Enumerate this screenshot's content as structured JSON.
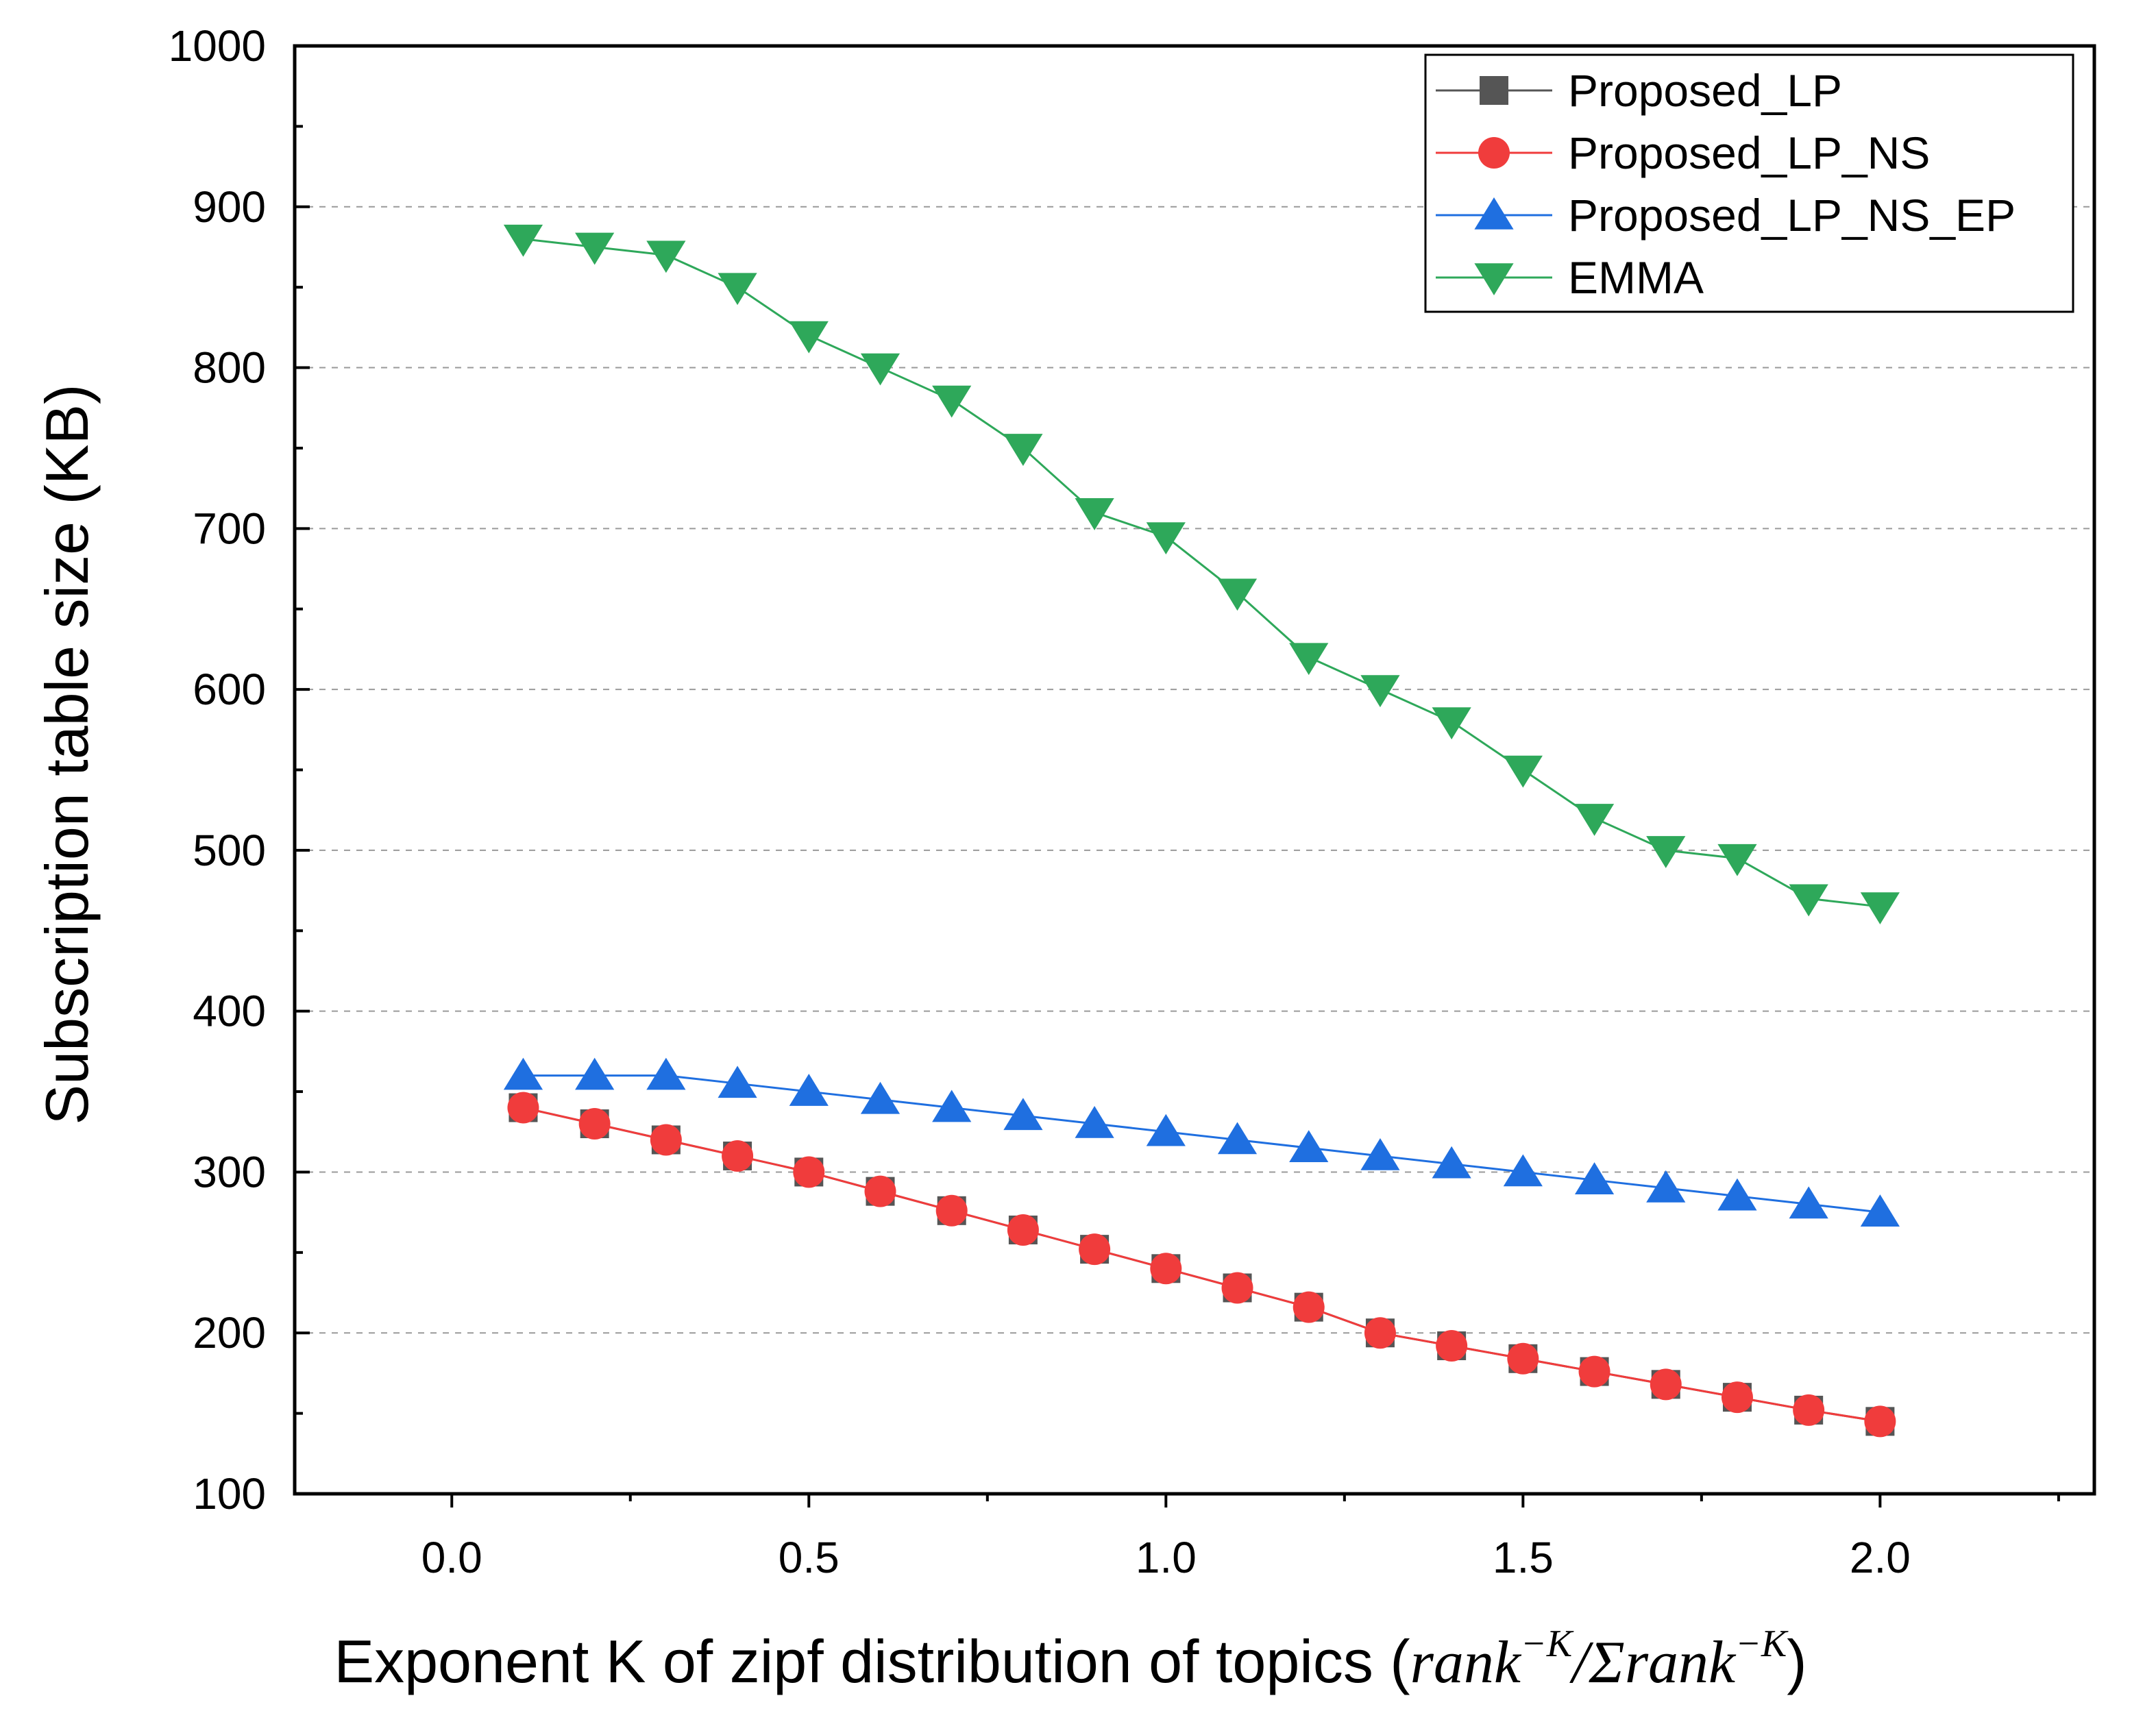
{
  "chart_data": {
    "type": "line",
    "title": "",
    "xlabel": "Exponent K of zipf distribution of topics",
    "xlabel_math": {
      "open": "(",
      "rank1": "rank",
      "exp1": "−K",
      "slash": "/Σ",
      "rank2": "rank",
      "exp2": "−K",
      "close": ")"
    },
    "ylabel": "Subscription table size (KB)",
    "xlim": [
      -0.22,
      2.3
    ],
    "ylim": [
      100,
      1000
    ],
    "x_ticks": [
      "0.0",
      "0.5",
      "1.0",
      "1.5",
      "2.0"
    ],
    "x_tick_values": [
      0.0,
      0.5,
      1.0,
      1.5,
      2.0
    ],
    "y_ticks": [
      "100",
      "200",
      "300",
      "400",
      "500",
      "600",
      "700",
      "800",
      "900",
      "1000"
    ],
    "y_tick_values": [
      100,
      200,
      300,
      400,
      500,
      600,
      700,
      800,
      900,
      1000
    ],
    "grid": "horizontal-dashed",
    "legend_position": "top-right",
    "x": [
      0.1,
      0.2,
      0.3,
      0.4,
      0.5,
      0.6,
      0.7,
      0.8,
      0.9,
      1.0,
      1.1,
      1.2,
      1.3,
      1.4,
      1.5,
      1.6,
      1.7,
      1.8,
      1.9,
      2.0
    ],
    "series": [
      {
        "name": "Proposed_LP",
        "color": "#555555",
        "marker": "square",
        "values": [
          340,
          330,
          320,
          310,
          300,
          288,
          276,
          264,
          252,
          240,
          228,
          216,
          200,
          192,
          184,
          176,
          168,
          160,
          152,
          145
        ]
      },
      {
        "name": "Proposed_LP_NS",
        "color": "#f03c3c",
        "marker": "circle",
        "values": [
          340,
          330,
          320,
          310,
          300,
          288,
          276,
          264,
          252,
          240,
          228,
          216,
          200,
          192,
          184,
          176,
          168,
          160,
          152,
          145
        ]
      },
      {
        "name": "Proposed_LP_NS_EP",
        "color": "#1f6fe0",
        "marker": "triangle-up",
        "values": [
          360,
          360,
          360,
          355,
          350,
          345,
          340,
          335,
          330,
          325,
          320,
          315,
          310,
          305,
          300,
          295,
          290,
          285,
          280,
          275
        ]
      },
      {
        "name": "EMMA",
        "color": "#2ea85a",
        "marker": "triangle-down",
        "values": [
          880,
          875,
          870,
          850,
          820,
          800,
          780,
          750,
          710,
          695,
          660,
          620,
          600,
          580,
          550,
          520,
          500,
          495,
          470,
          465
        ]
      }
    ]
  }
}
